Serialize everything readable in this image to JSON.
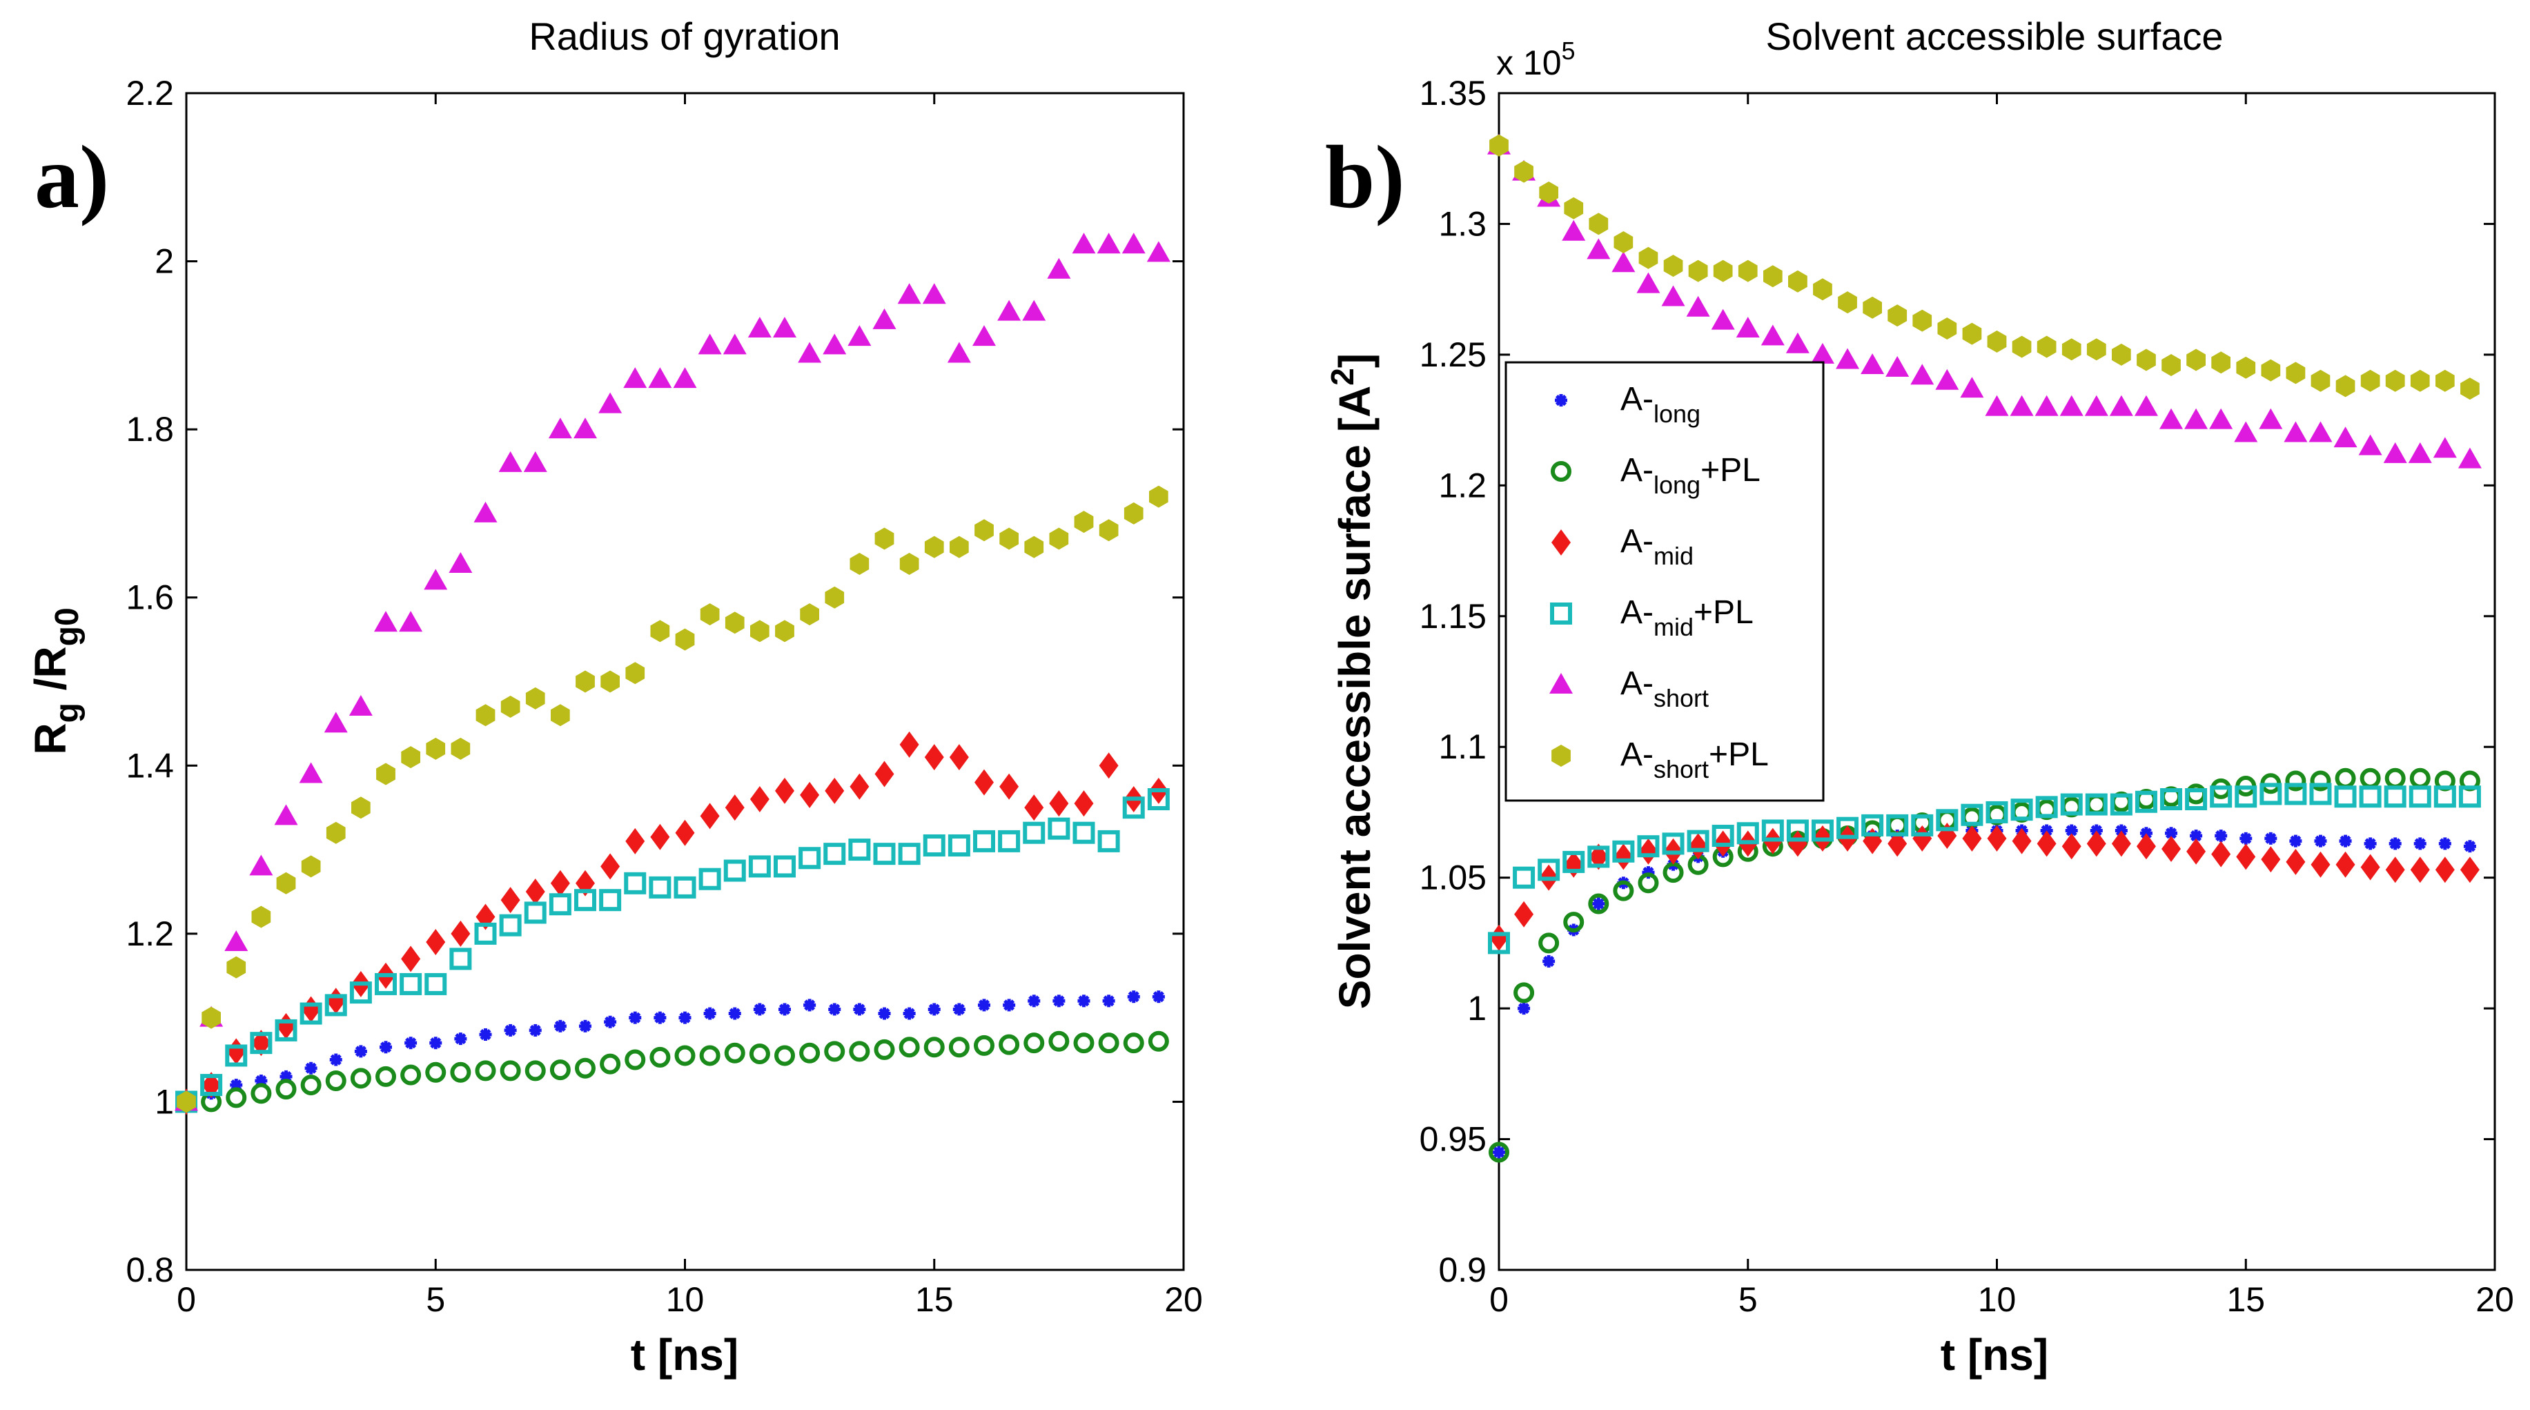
{
  "chart_data": [
    {
      "type": "scatter",
      "panel_label": "a)",
      "title": "Radius of gyration",
      "xlabel": "t [ns]",
      "ylabel": {
        "base1": "R",
        "sub1": "g",
        "sep": " /R",
        "sub2": "g0"
      },
      "xlim": [
        0,
        20
      ],
      "ylim": [
        0.8,
        2.2
      ],
      "xticks": [
        0,
        5,
        10,
        15,
        20
      ],
      "yticks": [
        0.8,
        1,
        1.2,
        1.4,
        1.6,
        1.8,
        2,
        2.2
      ],
      "ytick_labels": [
        "0.8",
        "1",
        "1.2",
        "1.4",
        "1.6",
        "1.8",
        "2",
        "2.2"
      ],
      "exponent_label": "",
      "x": [
        0,
        0.5,
        1,
        1.5,
        2,
        2.5,
        3,
        3.5,
        4,
        4.5,
        5,
        5.5,
        6,
        6.5,
        7,
        7.5,
        8,
        8.5,
        9,
        9.5,
        10,
        10.5,
        11,
        11.5,
        12,
        12.5,
        13,
        13.5,
        14,
        14.5,
        15,
        15.5,
        16,
        16.5,
        17,
        17.5,
        18,
        18.5,
        19,
        19.5
      ],
      "series": [
        {
          "name": "A-long",
          "marker": "asterisk",
          "color": "#1a1aee",
          "values": [
            1.0,
            1.01,
            1.02,
            1.025,
            1.03,
            1.04,
            1.05,
            1.06,
            1.065,
            1.07,
            1.07,
            1.075,
            1.08,
            1.085,
            1.085,
            1.09,
            1.09,
            1.095,
            1.1,
            1.1,
            1.1,
            1.105,
            1.105,
            1.11,
            1.11,
            1.115,
            1.11,
            1.11,
            1.105,
            1.105,
            1.11,
            1.11,
            1.115,
            1.115,
            1.12,
            1.12,
            1.12,
            1.12,
            1.125,
            1.125
          ]
        },
        {
          "name": "A-long+PL",
          "marker": "circle",
          "color": "#1a8a1a",
          "values": [
            1.0,
            1.0,
            1.005,
            1.01,
            1.015,
            1.02,
            1.025,
            1.028,
            1.03,
            1.032,
            1.035,
            1.035,
            1.037,
            1.037,
            1.037,
            1.038,
            1.04,
            1.045,
            1.05,
            1.053,
            1.055,
            1.055,
            1.058,
            1.057,
            1.055,
            1.058,
            1.06,
            1.06,
            1.062,
            1.065,
            1.065,
            1.065,
            1.067,
            1.068,
            1.07,
            1.072,
            1.07,
            1.07,
            1.07,
            1.072
          ]
        },
        {
          "name": "A-mid",
          "marker": "diamond",
          "color": "#ee1a1a",
          "values": [
            1.0,
            1.02,
            1.06,
            1.07,
            1.09,
            1.11,
            1.12,
            1.14,
            1.15,
            1.17,
            1.19,
            1.2,
            1.22,
            1.24,
            1.25,
            1.26,
            1.26,
            1.28,
            1.31,
            1.315,
            1.32,
            1.34,
            1.35,
            1.36,
            1.37,
            1.365,
            1.37,
            1.375,
            1.39,
            1.425,
            1.41,
            1.41,
            1.38,
            1.375,
            1.35,
            1.355,
            1.355,
            1.4,
            1.36,
            1.37
          ]
        },
        {
          "name": "A-mid+PL",
          "marker": "square",
          "color": "#1ababa",
          "values": [
            1.0,
            1.02,
            1.055,
            1.07,
            1.085,
            1.105,
            1.115,
            1.13,
            1.14,
            1.14,
            1.14,
            1.17,
            1.2,
            1.21,
            1.225,
            1.235,
            1.24,
            1.24,
            1.26,
            1.255,
            1.255,
            1.265,
            1.275,
            1.28,
            1.28,
            1.29,
            1.295,
            1.3,
            1.295,
            1.295,
            1.305,
            1.305,
            1.31,
            1.31,
            1.32,
            1.325,
            1.32,
            1.31,
            1.35,
            1.36
          ]
        },
        {
          "name": "A-short",
          "marker": "triangle",
          "color": "#dd1add",
          "values": [
            1.0,
            1.1,
            1.19,
            1.28,
            1.34,
            1.39,
            1.45,
            1.47,
            1.57,
            1.57,
            1.62,
            1.64,
            1.7,
            1.76,
            1.76,
            1.8,
            1.8,
            1.83,
            1.86,
            1.86,
            1.86,
            1.9,
            1.9,
            1.92,
            1.92,
            1.89,
            1.9,
            1.91,
            1.93,
            1.96,
            1.96,
            1.89,
            1.91,
            1.94,
            1.94,
            1.99,
            2.02,
            2.02,
            2.02,
            2.01
          ]
        },
        {
          "name": "A-short+PL",
          "marker": "hexagon",
          "color": "#bbbb1a",
          "values": [
            1.0,
            1.1,
            1.16,
            1.22,
            1.26,
            1.28,
            1.32,
            1.35,
            1.39,
            1.41,
            1.42,
            1.42,
            1.46,
            1.47,
            1.48,
            1.46,
            1.5,
            1.5,
            1.51,
            1.56,
            1.55,
            1.58,
            1.57,
            1.56,
            1.56,
            1.58,
            1.6,
            1.64,
            1.67,
            1.64,
            1.66,
            1.66,
            1.68,
            1.67,
            1.66,
            1.67,
            1.69,
            1.68,
            1.7,
            1.72
          ]
        }
      ]
    },
    {
      "type": "scatter",
      "panel_label": "b)",
      "title": "Solvent accessible surface",
      "xlabel": "t [ns]",
      "ylabel": {
        "text": "Solvent accessible surface [A",
        "sup": "2",
        "end": "]"
      },
      "xlim": [
        0,
        20
      ],
      "ylim": [
        0.9,
        1.35
      ],
      "xticks": [
        0,
        5,
        10,
        15,
        20
      ],
      "yticks": [
        0.9,
        0.95,
        1.0,
        1.05,
        1.1,
        1.15,
        1.2,
        1.25,
        1.3,
        1.35
      ],
      "ytick_labels": [
        "0.9",
        "0.95",
        "1",
        "1.05",
        "1.1",
        "1.15",
        "1.2",
        "1.25",
        "1.3",
        "1.35"
      ],
      "exponent_label": {
        "base": "x 10",
        "sup": "5"
      },
      "x": [
        0,
        0.5,
        1,
        1.5,
        2,
        2.5,
        3,
        3.5,
        4,
        4.5,
        5,
        5.5,
        6,
        6.5,
        7,
        7.5,
        8,
        8.5,
        9,
        9.5,
        10,
        10.5,
        11,
        11.5,
        12,
        12.5,
        13,
        13.5,
        14,
        14.5,
        15,
        15.5,
        16,
        16.5,
        17,
        17.5,
        18,
        18.5,
        19,
        19.5
      ],
      "series": [
        {
          "name": "A-long",
          "marker": "asterisk",
          "color": "#1a1aee",
          "values": [
            0.945,
            1.0,
            1.018,
            1.03,
            1.04,
            1.048,
            1.052,
            1.055,
            1.058,
            1.06,
            1.062,
            1.063,
            1.064,
            1.065,
            1.065,
            1.066,
            1.066,
            1.067,
            1.067,
            1.068,
            1.068,
            1.068,
            1.068,
            1.068,
            1.068,
            1.068,
            1.067,
            1.067,
            1.066,
            1.066,
            1.065,
            1.065,
            1.064,
            1.064,
            1.064,
            1.063,
            1.063,
            1.063,
            1.063,
            1.062
          ]
        },
        {
          "name": "A-long+PL",
          "marker": "circle",
          "color": "#1a8a1a",
          "values": [
            0.945,
            1.006,
            1.025,
            1.033,
            1.04,
            1.045,
            1.048,
            1.052,
            1.055,
            1.058,
            1.06,
            1.062,
            1.064,
            1.065,
            1.066,
            1.068,
            1.07,
            1.071,
            1.072,
            1.073,
            1.074,
            1.075,
            1.076,
            1.077,
            1.078,
            1.079,
            1.08,
            1.081,
            1.082,
            1.084,
            1.085,
            1.086,
            1.087,
            1.087,
            1.088,
            1.088,
            1.088,
            1.088,
            1.087,
            1.087
          ]
        },
        {
          "name": "A-mid",
          "marker": "diamond",
          "color": "#ee1a1a",
          "values": [
            1.027,
            1.036,
            1.05,
            1.055,
            1.058,
            1.058,
            1.06,
            1.06,
            1.062,
            1.063,
            1.063,
            1.064,
            1.063,
            1.065,
            1.065,
            1.064,
            1.063,
            1.065,
            1.066,
            1.065,
            1.065,
            1.064,
            1.063,
            1.062,
            1.063,
            1.063,
            1.062,
            1.061,
            1.06,
            1.059,
            1.058,
            1.057,
            1.056,
            1.055,
            1.055,
            1.054,
            1.053,
            1.053,
            1.053,
            1.053
          ]
        },
        {
          "name": "A-mid+PL",
          "marker": "square",
          "color": "#1ababa",
          "values": [
            1.025,
            1.05,
            1.053,
            1.056,
            1.058,
            1.06,
            1.062,
            1.063,
            1.064,
            1.066,
            1.067,
            1.068,
            1.068,
            1.068,
            1.069,
            1.07,
            1.07,
            1.07,
            1.072,
            1.074,
            1.075,
            1.076,
            1.077,
            1.078,
            1.078,
            1.078,
            1.079,
            1.08,
            1.08,
            1.081,
            1.081,
            1.082,
            1.082,
            1.082,
            1.081,
            1.081,
            1.081,
            1.081,
            1.081,
            1.081
          ]
        },
        {
          "name": "A-short",
          "marker": "triangle",
          "color": "#dd1add",
          "values": [
            1.33,
            1.32,
            1.31,
            1.297,
            1.29,
            1.285,
            1.277,
            1.272,
            1.268,
            1.263,
            1.26,
            1.257,
            1.254,
            1.25,
            1.248,
            1.246,
            1.245,
            1.242,
            1.24,
            1.237,
            1.23,
            1.23,
            1.23,
            1.23,
            1.23,
            1.23,
            1.23,
            1.225,
            1.225,
            1.225,
            1.22,
            1.225,
            1.22,
            1.22,
            1.218,
            1.215,
            1.212,
            1.212,
            1.214,
            1.21
          ]
        },
        {
          "name": "A-short+PL",
          "marker": "hexagon",
          "color": "#bbbb1a",
          "values": [
            1.33,
            1.32,
            1.312,
            1.306,
            1.3,
            1.293,
            1.287,
            1.284,
            1.282,
            1.282,
            1.282,
            1.28,
            1.278,
            1.275,
            1.27,
            1.268,
            1.265,
            1.263,
            1.26,
            1.258,
            1.255,
            1.253,
            1.253,
            1.252,
            1.252,
            1.25,
            1.248,
            1.246,
            1.248,
            1.247,
            1.245,
            1.244,
            1.243,
            1.24,
            1.238,
            1.24,
            1.24,
            1.24,
            1.24,
            1.237
          ]
        }
      ],
      "legend": {
        "placement": "center-left",
        "entries": [
          {
            "base": "A-",
            "sub": "long",
            "suffix": ""
          },
          {
            "base": "A-",
            "sub": "long",
            "suffix": "+PL"
          },
          {
            "base": "A-",
            "sub": "mid",
            "suffix": ""
          },
          {
            "base": "A-",
            "sub": "mid",
            "suffix": "+PL"
          },
          {
            "base": "A-",
            "sub": "short",
            "suffix": ""
          },
          {
            "base": "A-",
            "sub": "short",
            "suffix": "+PL"
          }
        ]
      }
    }
  ]
}
